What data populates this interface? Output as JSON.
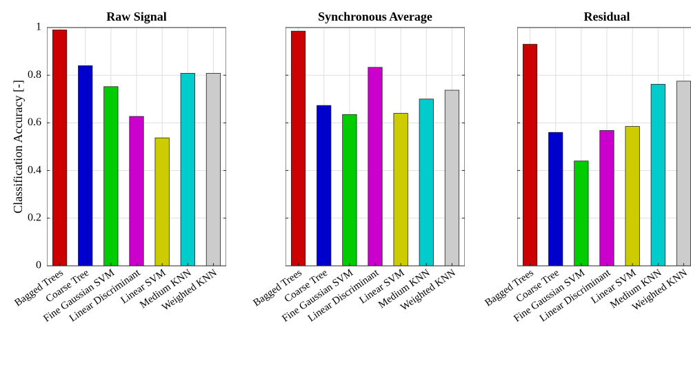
{
  "figure": {
    "ylabel": "Classification Accuracy [-]"
  },
  "chart_data": [
    {
      "type": "bar",
      "title": "Raw Signal",
      "categories": [
        "Bagged Trees",
        "Coarse Tree",
        "Fine Gaussian SVM",
        "Linear Discriminant",
        "Linear SVM",
        "Medium KNN",
        "Weighted KNN"
      ],
      "values": [
        0.99,
        0.84,
        0.752,
        0.627,
        0.537,
        0.808,
        0.808
      ],
      "ylim": [
        0,
        1
      ],
      "yticks": [
        0,
        0.2,
        0.4,
        0.6,
        0.8,
        1
      ],
      "ytick_labels": [
        "0",
        "0.2",
        "0.4",
        "0.6",
        "0.8",
        "1"
      ],
      "grid": true
    },
    {
      "type": "bar",
      "title": "Synchronous Average",
      "categories": [
        "Bagged Trees",
        "Coarse Tree",
        "Fine Gaussian SVM",
        "Linear Discriminant",
        "Linear SVM",
        "Medium KNN",
        "Weighted KNN"
      ],
      "values": [
        0.985,
        0.673,
        0.635,
        0.833,
        0.64,
        0.7,
        0.737
      ],
      "ylim": [
        0,
        1
      ],
      "yticks": [
        0,
        0.2,
        0.4,
        0.6,
        0.8,
        1
      ],
      "ytick_labels": [],
      "grid": true
    },
    {
      "type": "bar",
      "title": "Residual",
      "categories": [
        "Bagged Trees",
        "Coarse Tree",
        "Fine Gaussian SVM",
        "Linear Discriminant",
        "Linear SVM",
        "Medium KNN",
        "Weighted KNN"
      ],
      "values": [
        0.93,
        0.56,
        0.44,
        0.568,
        0.585,
        0.762,
        0.775
      ],
      "ylim": [
        0,
        1
      ],
      "yticks": [
        0,
        0.2,
        0.4,
        0.6,
        0.8,
        1
      ],
      "ytick_labels": [],
      "grid": true
    }
  ],
  "colors": [
    "#cc0000",
    "#0000cc",
    "#00cc00",
    "#cc00cc",
    "#cccc00",
    "#00cccc",
    "#cccccc"
  ]
}
